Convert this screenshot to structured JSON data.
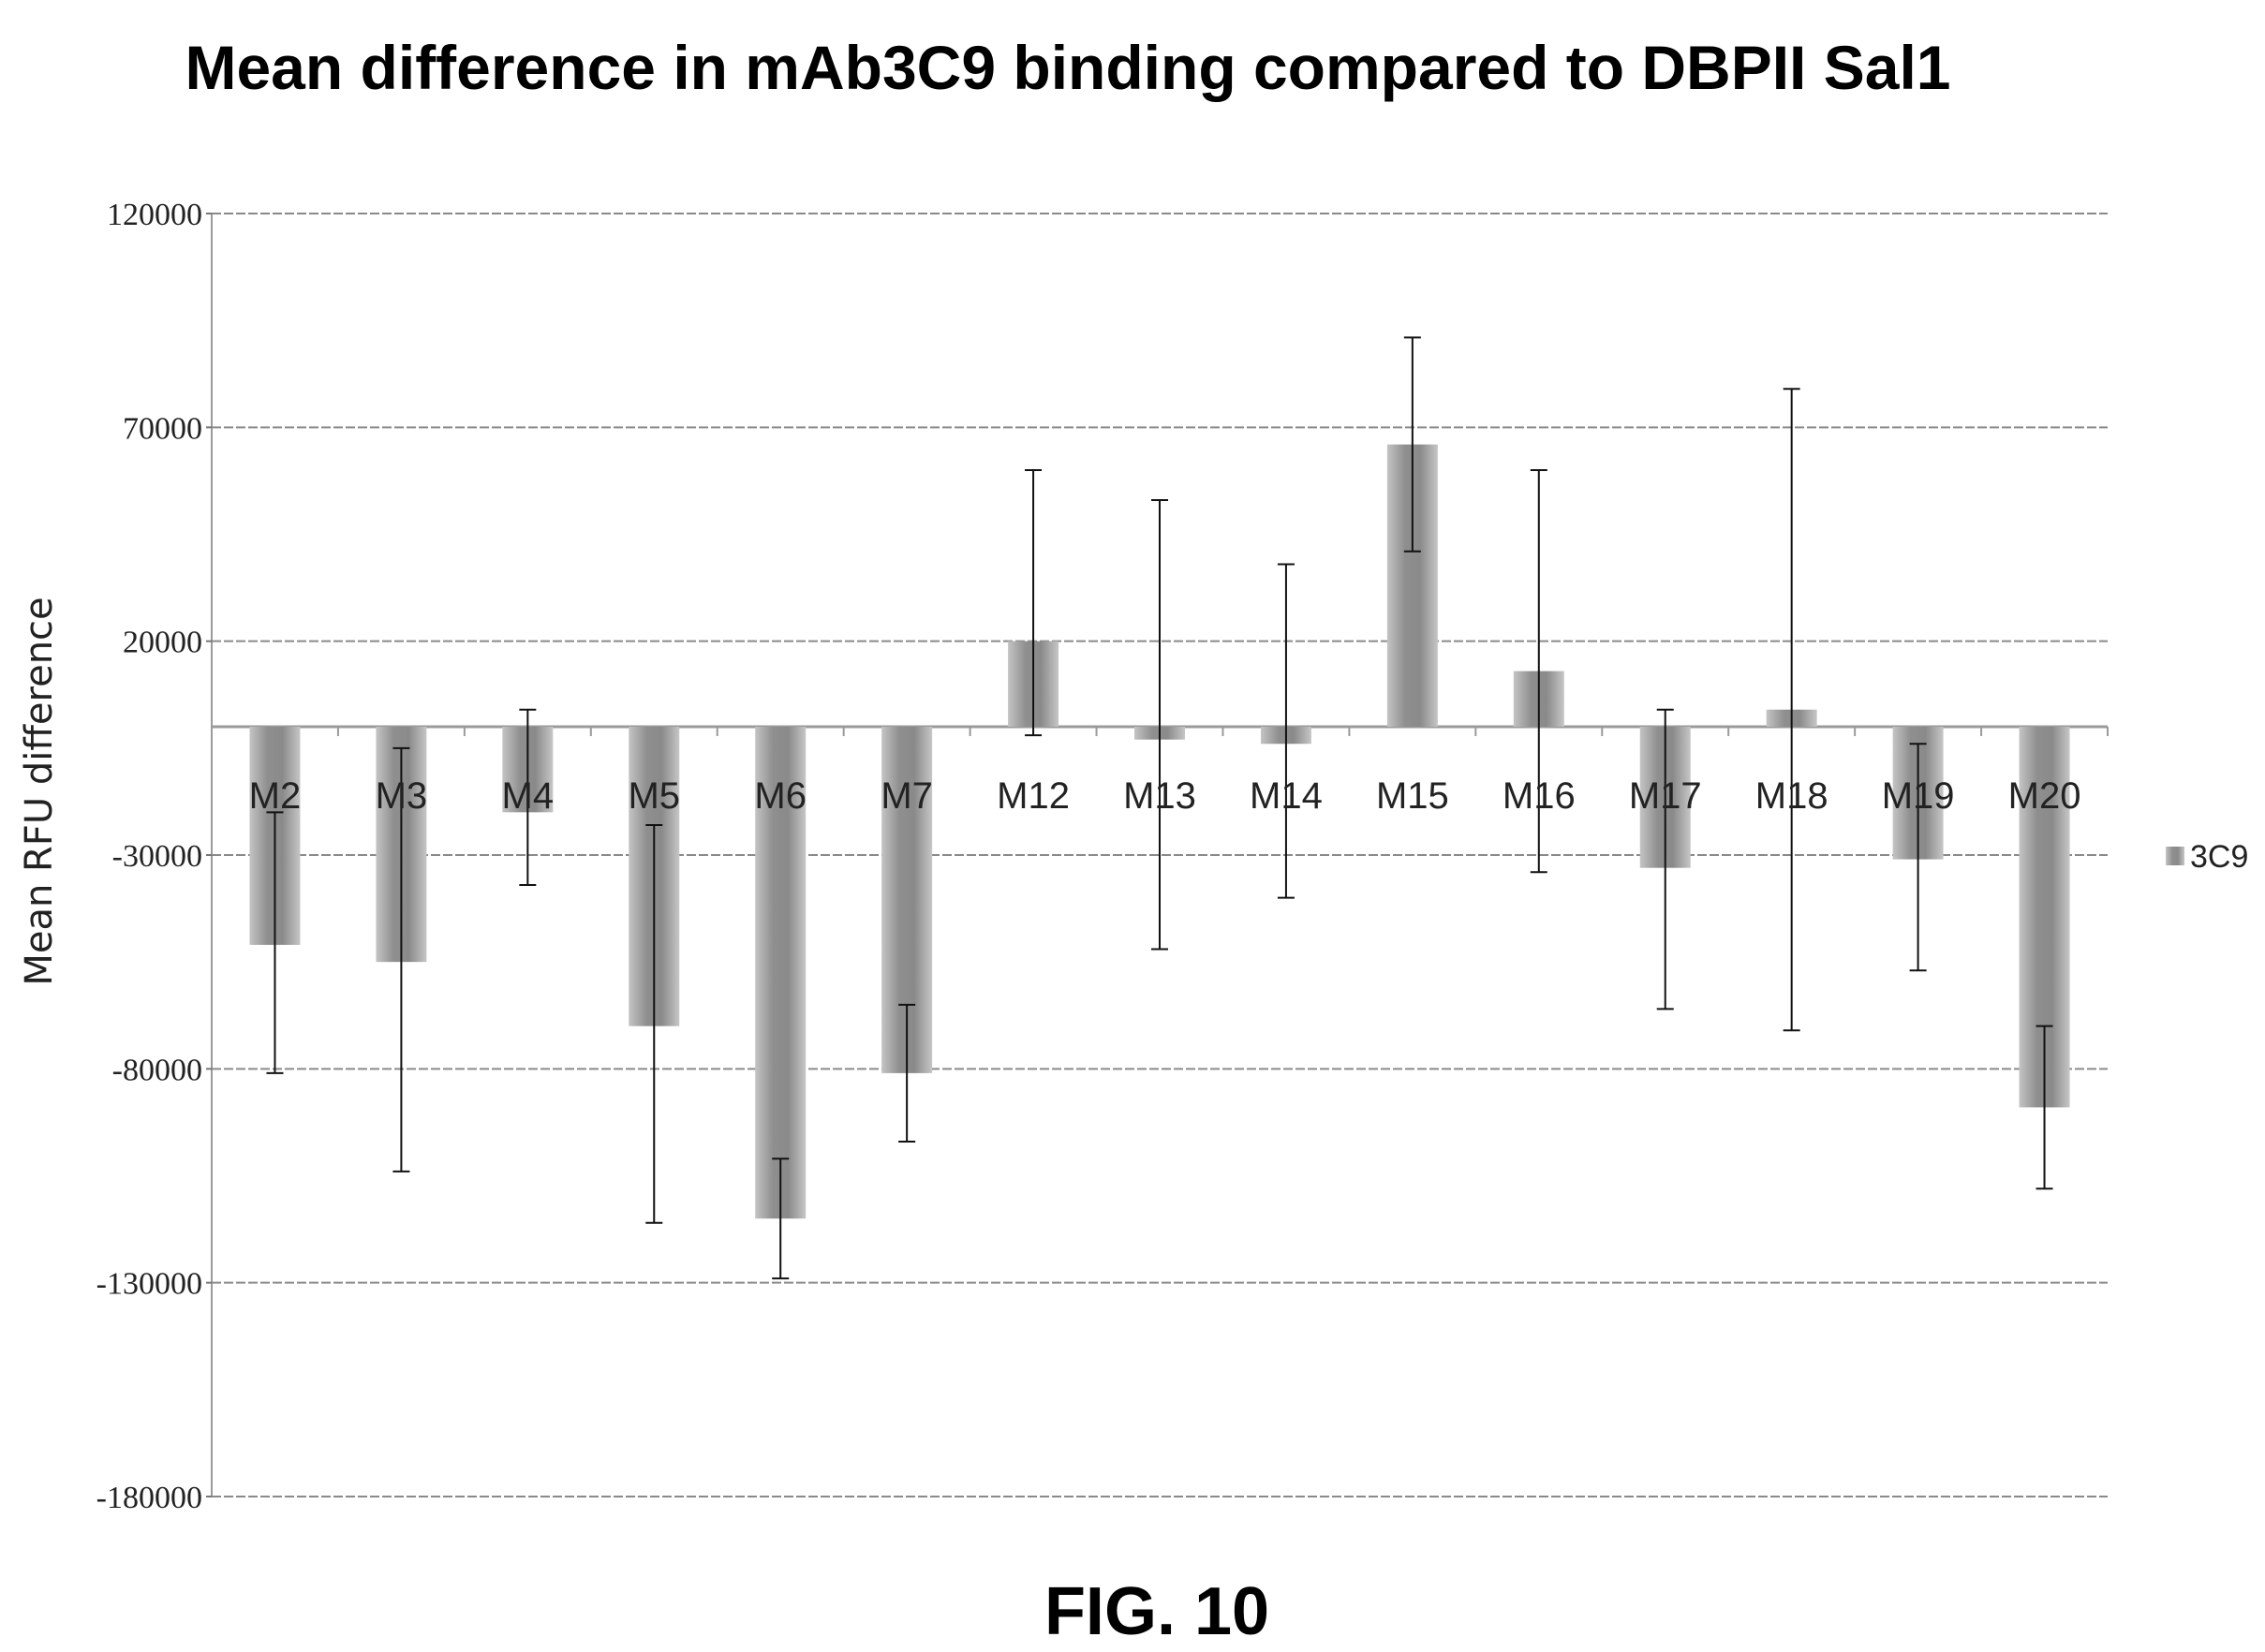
{
  "figure_label": "FIG. 10",
  "chart_data": {
    "type": "bar",
    "title": "Mean difference in mAb3C9 binding compared to DBPII Sal1",
    "xlabel": "",
    "ylabel": "Mean RFU difference",
    "ylim": [
      -180000,
      120000
    ],
    "yticks": [
      120000,
      70000,
      20000,
      -30000,
      -80000,
      -130000,
      -180000
    ],
    "grid": true,
    "legend_position": "right",
    "bar_color": "#9a9a9a",
    "categories": [
      "M2",
      "M3",
      "M4",
      "M5",
      "M6",
      "M7",
      "M12",
      "M13",
      "M14",
      "M15",
      "M16",
      "M17",
      "M18",
      "M19",
      "M20"
    ],
    "series": [
      {
        "name": "3C9",
        "values": [
          -51000,
          -55000,
          -20000,
          -70000,
          -115000,
          -81000,
          20000,
          -3000,
          -4000,
          66000,
          13000,
          -33000,
          4000,
          -31000,
          -89000
        ],
        "error_low": [
          -81000,
          -104000,
          -37000,
          -116000,
          -129000,
          -97000,
          -2000,
          -52000,
          -40000,
          41000,
          -34000,
          -66000,
          -71000,
          -57000,
          -108000
        ],
        "error_high": [
          -20000,
          -5000,
          4000,
          -23000,
          -101000,
          -65000,
          60000,
          53000,
          38000,
          91000,
          60000,
          4000,
          79000,
          -4000,
          -70000
        ]
      }
    ]
  }
}
